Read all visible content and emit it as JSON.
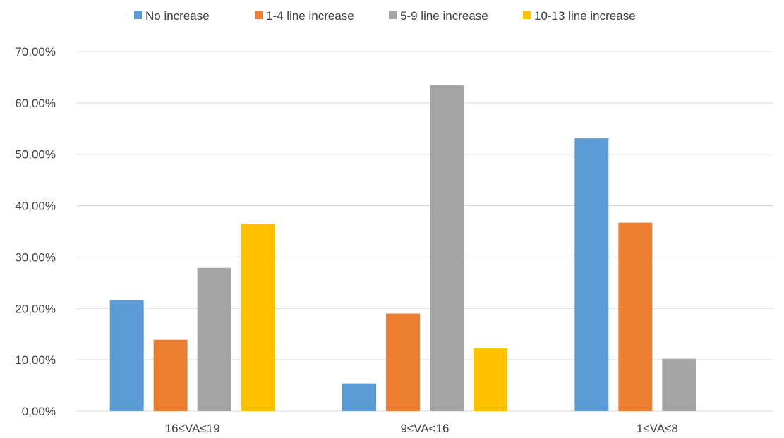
{
  "chart_data": {
    "type": "bar",
    "categories": [
      "16≤VA≤19",
      "9≤VA<16",
      "1≤VA≤8"
    ],
    "series": [
      {
        "name": "No increase",
        "color": "#5b9bd5",
        "values": [
          21.6,
          5.4,
          53.1
        ]
      },
      {
        "name": "1-4 line increase",
        "color": "#ed7d31",
        "values": [
          13.9,
          19.0,
          36.7
        ]
      },
      {
        "name": "5-9 line increase",
        "color": "#a5a5a5",
        "values": [
          27.9,
          63.4,
          10.2
        ]
      },
      {
        "name": "10-13 line increase",
        "color": "#ffc000",
        "values": [
          36.5,
          12.2,
          0
        ]
      }
    ],
    "ylim": [
      0,
      70
    ],
    "yticks": [
      0,
      10,
      20,
      30,
      40,
      50,
      60,
      70
    ],
    "ytick_labels": [
      "0,00%",
      "10,00%",
      "20,00%",
      "30,00%",
      "40,00%",
      "50,00%",
      "60,00%",
      "70,00%"
    ],
    "grid": true,
    "legend_position": "top",
    "title": "",
    "xlabel": "",
    "ylabel": ""
  }
}
